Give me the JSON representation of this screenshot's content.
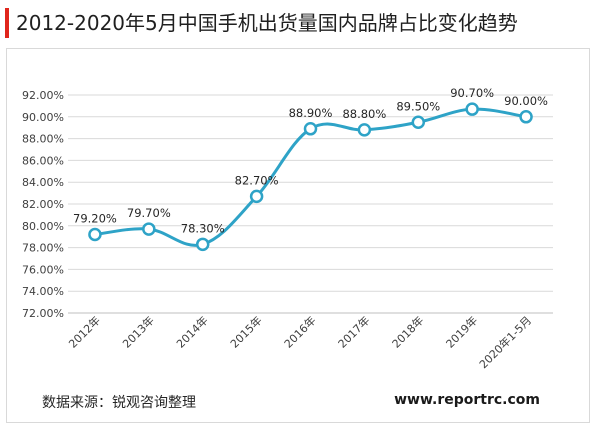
{
  "title": "2012-2020年5月中国手机出货量国内品牌占比变化趋势",
  "source": "数据来源：锐观咨询整理",
  "watermark": "www.reportrc.com",
  "colors": {
    "line": "#2ea3c7",
    "accent": "#e0251c",
    "grid": "#d9d9d9"
  },
  "chart_data": {
    "type": "line",
    "categories": [
      "2012年",
      "2013年",
      "2014年",
      "2015年",
      "2016年",
      "2017年",
      "2018年",
      "2019年",
      "2020年1-5月"
    ],
    "values": [
      79.2,
      79.7,
      78.3,
      82.7,
      88.9,
      88.8,
      89.5,
      90.7,
      90.0
    ],
    "data_labels": [
      "79.20%",
      "79.70%",
      "78.30%",
      "82.70%",
      "88.90%",
      "88.80%",
      "89.50%",
      "90.70%",
      "90.00%"
    ],
    "ylim": [
      72,
      92
    ],
    "ytick_labels": [
      "72.00%",
      "74.00%",
      "76.00%",
      "78.00%",
      "80.00%",
      "82.00%",
      "84.00%",
      "86.00%",
      "88.00%",
      "90.00%",
      "92.00%"
    ],
    "grid": true,
    "legend": "none",
    "smooth": true
  }
}
